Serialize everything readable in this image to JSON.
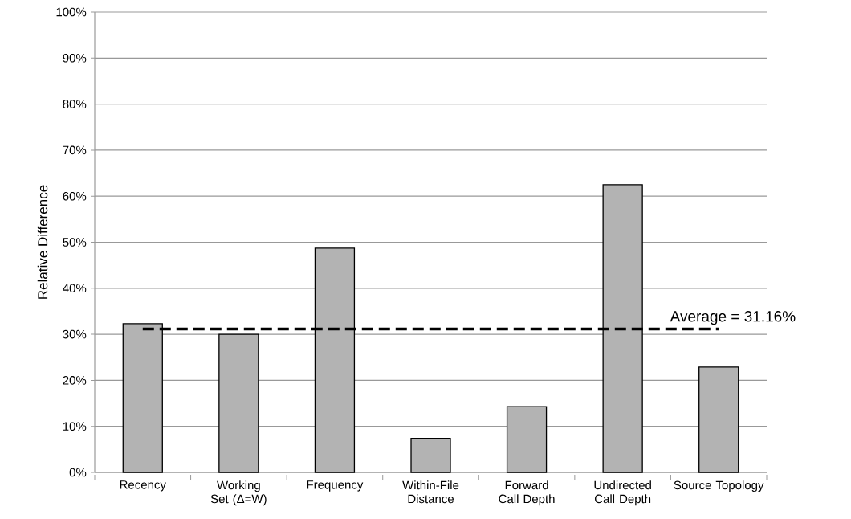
{
  "chart_data": {
    "type": "bar",
    "ylabel": "Relative Difference",
    "categories": [
      "Recency",
      "Working Set (Δ=W)",
      "Frequency",
      "Within-File Distance",
      "Forward Call Depth",
      "Undirected Call Depth",
      "Source Topology"
    ],
    "values": [
      32.3,
      30.0,
      48.7,
      7.4,
      14.3,
      62.5,
      22.9
    ],
    "color": "#b3b3b3",
    "ylim": [
      0,
      100
    ],
    "yticks": [
      {
        "value": 0,
        "label": "0%"
      },
      {
        "value": 10,
        "label": "10%"
      },
      {
        "value": 20,
        "label": "20%"
      },
      {
        "value": 30,
        "label": "30%"
      },
      {
        "value": 40,
        "label": "40%"
      },
      {
        "value": 50,
        "label": "50%"
      },
      {
        "value": 60,
        "label": "60%"
      },
      {
        "value": 70,
        "label": "70%"
      },
      {
        "value": 80,
        "label": "80%"
      },
      {
        "value": 90,
        "label": "90%"
      },
      {
        "value": 100,
        "label": "100%"
      }
    ],
    "grid": "y",
    "ref_lines": [
      {
        "axis": "y",
        "value": 31.16,
        "label": "Average = 31.16%",
        "line_style": "dashed"
      }
    ]
  }
}
